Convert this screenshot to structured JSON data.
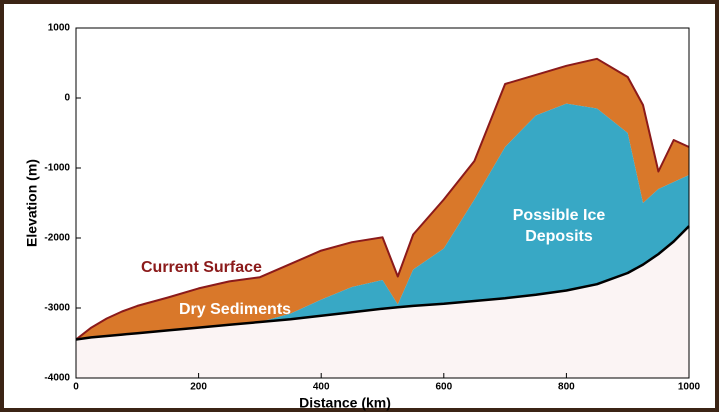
{
  "chart_data": {
    "type": "elevation-profile",
    "x_label": "Distance (km)",
    "y_label": "Elevation (m)",
    "x": [
      0,
      25,
      50,
      75,
      100,
      150,
      200,
      250,
      300,
      350,
      400,
      450,
      500,
      525,
      550,
      600,
      650,
      700,
      750,
      800,
      850,
      900,
      925,
      950,
      975,
      1000
    ],
    "series": [
      {
        "name": "Current Surface",
        "color": "#8b1a1a",
        "fill": "#d9782a",
        "values": [
          -3450,
          -3280,
          -3150,
          -3050,
          -2970,
          -2850,
          -2720,
          -2620,
          -2560,
          -2370,
          -2180,
          -2060,
          -1990,
          -2550,
          -1950,
          -1450,
          -900,
          200,
          330,
          460,
          560,
          300,
          -100,
          -1050,
          -600,
          -700
        ]
      },
      {
        "name": "Possible Ice Deposits",
        "color": "#2f95b0",
        "fill": "#38a8c5",
        "values": [
          -3450,
          -3420,
          -3400,
          -3380,
          -3360,
          -3320,
          -3280,
          -3240,
          -3200,
          -3080,
          -2880,
          -2700,
          -2600,
          -2950,
          -2450,
          -2150,
          -1450,
          -700,
          -250,
          -80,
          -150,
          -500,
          -1500,
          -1300,
          -1200,
          -1100
        ]
      },
      {
        "color": "#000000",
        "fill": "#fbf4f4",
        "values": [
          -3450,
          -3420,
          -3400,
          -3380,
          -3360,
          -3320,
          -3280,
          -3240,
          -3200,
          -3160,
          -3110,
          -3060,
          -3010,
          -2990,
          -2970,
          -2940,
          -2900,
          -2860,
          -2810,
          -2750,
          -2660,
          -2500,
          -2380,
          -2230,
          -2050,
          -1830
        ]
      }
    ],
    "annotations": [
      {
        "text": "Current Surface",
        "color": "#8b1a1a"
      },
      {
        "text": "Dry Sediments",
        "color": "#ffffff"
      },
      {
        "text": "Possible Ice Deposits",
        "color": "#ffffff"
      }
    ],
    "xlim": [
      0,
      1000
    ],
    "ylim": [
      -4000,
      1000
    ],
    "xticks": [
      0,
      200,
      400,
      600,
      800,
      1000
    ],
    "yticks": [
      1000,
      0,
      -1000,
      -2000,
      -3000,
      -4000
    ]
  }
}
